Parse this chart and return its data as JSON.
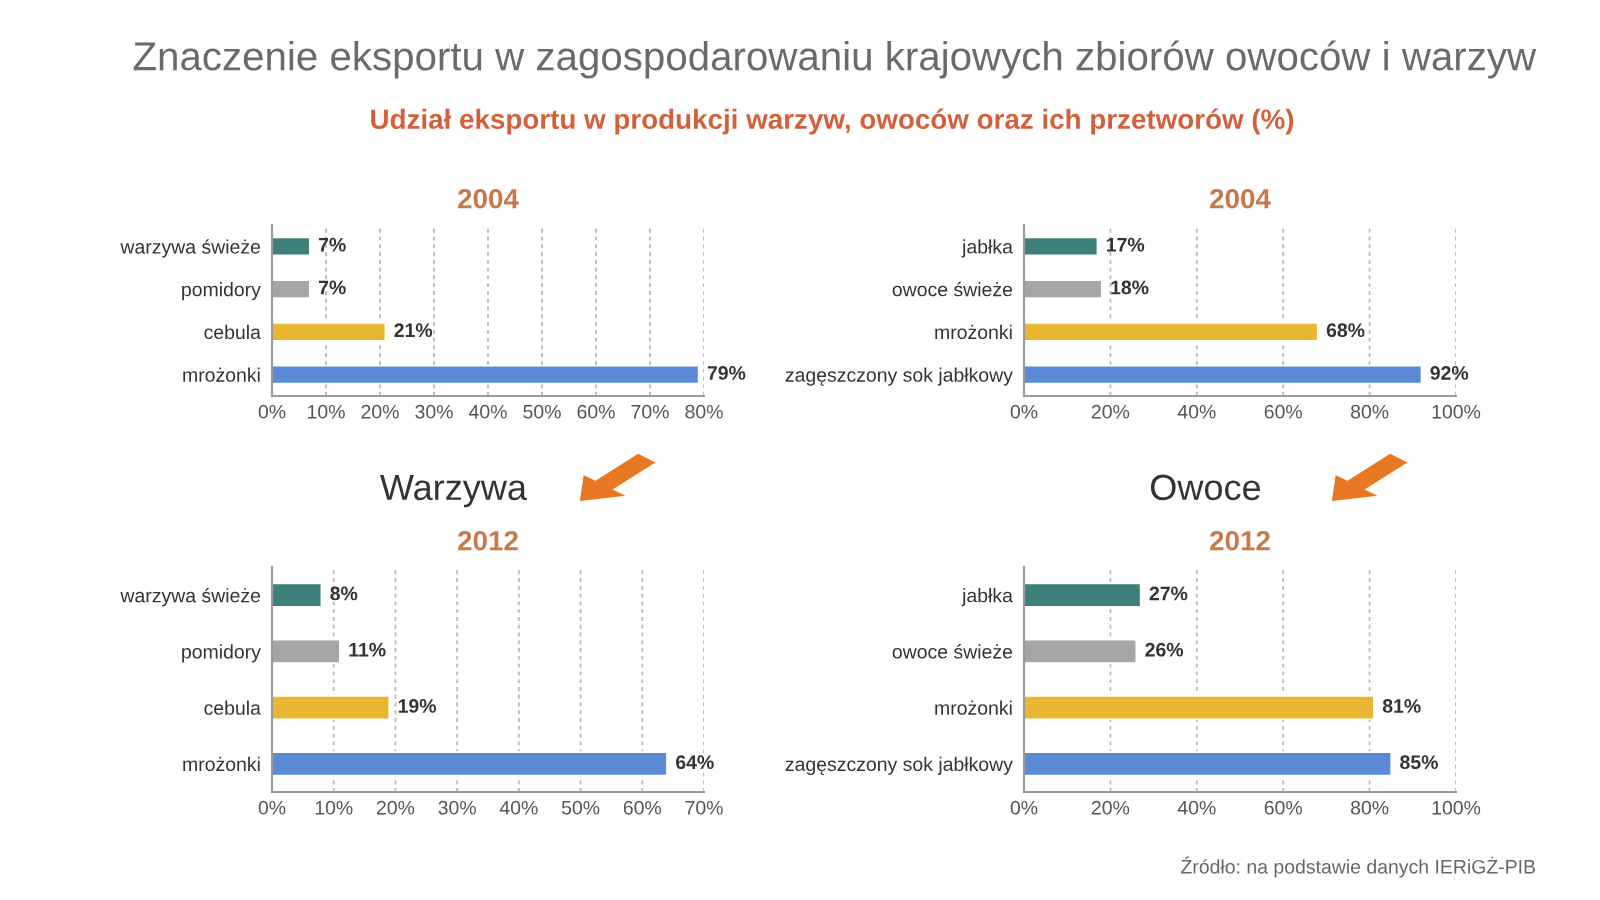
{
  "chart_data": [
    {
      "type": "bar",
      "orientation": "horizontal",
      "title": "2004",
      "categories": [
        "warzywa świeże",
        "pomidory",
        "cebula",
        "mrożonki"
      ],
      "values": [
        7,
        7,
        21,
        79
      ],
      "colors": [
        "#3d7f7a",
        "#a6a6a6",
        "#e8b631",
        "#5a8ad6"
      ],
      "value_labels": [
        "7%",
        "7%",
        "21%",
        "79%"
      ],
      "xlim": [
        0,
        80
      ],
      "xticks": [
        {
          "value": 0,
          "label": "0%"
        },
        {
          "value": 10,
          "label": "10%"
        },
        {
          "value": 20,
          "label": "20%"
        },
        {
          "value": 30,
          "label": "30%"
        },
        {
          "value": 40,
          "label": "40%"
        },
        {
          "value": 50,
          "label": "50%"
        },
        {
          "value": 60,
          "label": "60%"
        },
        {
          "value": 70,
          "label": "70%"
        },
        {
          "value": 80,
          "label": "80%"
        }
      ],
      "grid": "x",
      "annotations": [
        "Znaczenie eksportu w zagospodarowaniu krajowych zbiorów owoców i warzyw",
        "Udział eksportu w produkcji warzyw, owoców oraz ich przetworów (%)"
      ]
    },
    {
      "type": "bar",
      "orientation": "horizontal",
      "title": "2004",
      "categories": [
        "jabłka",
        "owoce świeże",
        "mrożonki",
        "zagęszczony sok jabłkowy"
      ],
      "values": [
        17,
        18,
        68,
        92
      ],
      "colors": [
        "#3d7f7a",
        "#a6a6a6",
        "#e8b631",
        "#5a8ad6"
      ],
      "value_labels": [
        "17%",
        "18%",
        "68%",
        "92%"
      ],
      "xlim": [
        0,
        100
      ],
      "xticks": [
        {
          "value": 0,
          "label": "0%"
        },
        {
          "value": 20,
          "label": "20%"
        },
        {
          "value": 40,
          "label": "40%"
        },
        {
          "value": 60,
          "label": "60%"
        },
        {
          "value": 80,
          "label": "80%"
        },
        {
          "value": 100,
          "label": "100%"
        }
      ],
      "grid": "x"
    },
    {
      "type": "bar",
      "orientation": "horizontal",
      "title": "2012",
      "categories": [
        "warzywa świeże",
        "pomidory",
        "cebula",
        "mrożonki"
      ],
      "values": [
        8,
        11,
        19,
        64
      ],
      "colors": [
        "#3d7f7a",
        "#a6a6a6",
        "#e8b631",
        "#5a8ad6"
      ],
      "value_labels": [
        "8%",
        "11%",
        "19%",
        "64%"
      ],
      "xlim": [
        0,
        70
      ],
      "xticks": [
        {
          "value": 0,
          "label": "0%"
        },
        {
          "value": 10,
          "label": "10%"
        },
        {
          "value": 20,
          "label": "20%"
        },
        {
          "value": 30,
          "label": "30%"
        },
        {
          "value": 40,
          "label": "40%"
        },
        {
          "value": 50,
          "label": "50%"
        },
        {
          "value": 60,
          "label": "60%"
        },
        {
          "value": 70,
          "label": "70%"
        }
      ],
      "grid": "x",
      "annotations": [
        "Warzywa"
      ]
    },
    {
      "type": "bar",
      "orientation": "horizontal",
      "title": "2012",
      "categories": [
        "jabłka",
        "owoce świeże",
        "mrożonki",
        "zagęszczony sok jabłkowy"
      ],
      "values": [
        27,
        26,
        81,
        85
      ],
      "colors": [
        "#3d7f7a",
        "#a6a6a6",
        "#e8b631",
        "#5a8ad6"
      ],
      "value_labels": [
        "27%",
        "26%",
        "81%",
        "85%"
      ],
      "xlim": [
        0,
        100
      ],
      "xticks": [
        {
          "value": 0,
          "label": "0%"
        },
        {
          "value": 20,
          "label": "20%"
        },
        {
          "value": 40,
          "label": "40%"
        },
        {
          "value": 60,
          "label": "60%"
        },
        {
          "value": 80,
          "label": "80%"
        },
        {
          "value": 100,
          "label": "100%"
        }
      ],
      "grid": "x",
      "annotations": [
        "Owoce",
        "Źródło: na podstawie danych IERiGŻ-PIB"
      ]
    }
  ]
}
